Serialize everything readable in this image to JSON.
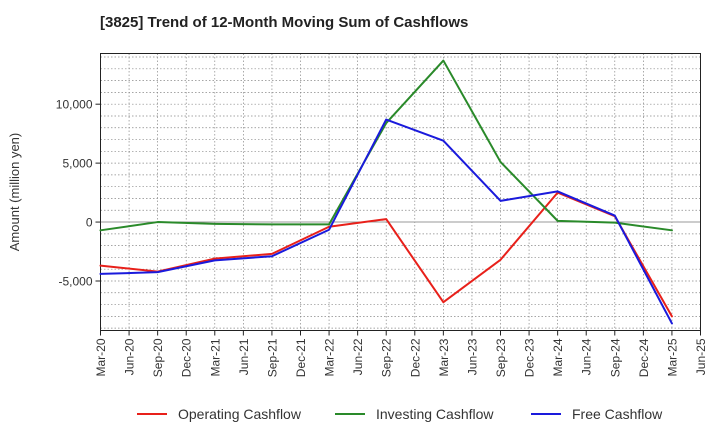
{
  "chart_data": {
    "type": "line",
    "title": "[3825]  Trend of 12-Month Moving Sum of Cashflows",
    "xlabel": "",
    "ylabel": "Amount (million yen)",
    "ylim": [
      -9200,
      14300
    ],
    "y_ticks": [
      -5000,
      0,
      5000,
      10000
    ],
    "y_tick_labels": [
      "-5,000",
      "0",
      "5,000",
      "10,000"
    ],
    "categories": [
      "Mar-20",
      "Jun-20",
      "Sep-20",
      "Dec-20",
      "Mar-21",
      "Jun-21",
      "Sep-21",
      "Dec-21",
      "Mar-22",
      "Jun-22",
      "Sep-22",
      "Dec-22",
      "Mar-23",
      "Jun-23",
      "Sep-23",
      "Dec-23",
      "Mar-24",
      "Jun-24",
      "Sep-24",
      "Dec-24",
      "Mar-25",
      "Jun-25"
    ],
    "grid": true,
    "legend_position": "bottom",
    "series": [
      {
        "name": "Operating Cashflow",
        "color": "#e8201a",
        "points": [
          [
            "Mar-20",
            -3700
          ],
          [
            "Sep-20",
            -4200
          ],
          [
            "Mar-21",
            -3100
          ],
          [
            "Sep-21",
            -2700
          ],
          [
            "Mar-22",
            -400
          ],
          [
            "Sep-22",
            250
          ],
          [
            "Mar-23",
            -6800
          ],
          [
            "Sep-23",
            -3200
          ],
          [
            "Mar-24",
            2500
          ],
          [
            "Sep-24",
            500
          ],
          [
            "Mar-25",
            -8000
          ]
        ]
      },
      {
        "name": "Investing Cashflow",
        "color": "#2a8a2a",
        "points": [
          [
            "Mar-20",
            -700
          ],
          [
            "Sep-20",
            0
          ],
          [
            "Mar-21",
            -150
          ],
          [
            "Sep-21",
            -200
          ],
          [
            "Mar-22",
            -200
          ],
          [
            "Sep-22",
            8400
          ],
          [
            "Mar-23",
            13700
          ],
          [
            "Sep-23",
            5100
          ],
          [
            "Mar-24",
            100
          ],
          [
            "Sep-24",
            -50
          ],
          [
            "Mar-25",
            -700
          ]
        ]
      },
      {
        "name": "Free Cashflow",
        "color": "#1a1adc",
        "points": [
          [
            "Mar-20",
            -4400
          ],
          [
            "Sep-20",
            -4250
          ],
          [
            "Mar-21",
            -3250
          ],
          [
            "Sep-21",
            -2900
          ],
          [
            "Mar-22",
            -650
          ],
          [
            "Sep-22",
            8700
          ],
          [
            "Mar-23",
            6900
          ],
          [
            "Sep-23",
            1800
          ],
          [
            "Mar-24",
            2600
          ],
          [
            "Sep-24",
            550
          ],
          [
            "Mar-25",
            -8600
          ]
        ]
      }
    ]
  }
}
